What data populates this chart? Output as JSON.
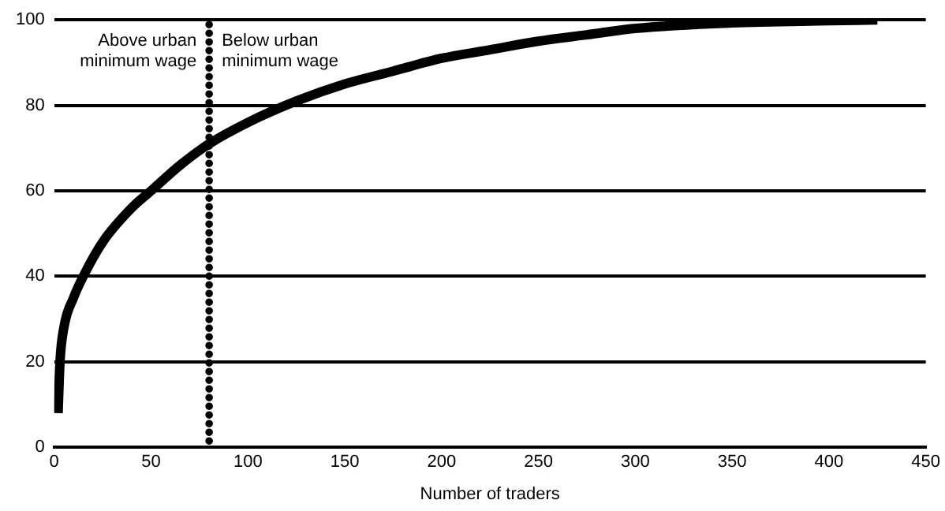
{
  "chart_data": {
    "type": "line",
    "xlabel": "Number of traders",
    "xlim": [
      0,
      450
    ],
    "xticks": [
      0,
      50,
      100,
      150,
      200,
      250,
      300,
      350,
      400,
      450
    ],
    "ylim": [
      0,
      100
    ],
    "yticks": [
      0,
      20,
      40,
      60,
      80,
      100
    ],
    "grid": "y",
    "marker": "none",
    "line_style": "solid",
    "series": [
      {
        "color": "#000000",
        "x": [
          2,
          3,
          5,
          10,
          15,
          25,
          40,
          50,
          65,
          80,
          100,
          125,
          150,
          175,
          200,
          225,
          250,
          275,
          300,
          350,
          400,
          425
        ],
        "values": [
          8,
          20,
          28,
          35,
          40,
          48,
          56,
          60,
          66,
          71,
          76,
          81,
          85,
          88,
          91,
          93,
          95,
          96.5,
          98,
          99.3,
          99.8,
          100
        ]
      }
    ],
    "ref_lines": [
      {
        "axis": "x",
        "value": 80,
        "color": "#000000",
        "line_style": "dotted"
      }
    ],
    "annotations": [
      "Above urban minimum wage",
      "Below urban minimum wage"
    ]
  }
}
